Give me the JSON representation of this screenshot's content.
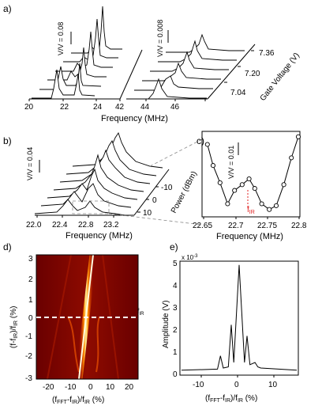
{
  "panels": {
    "a": {
      "label": "a)",
      "scale_left": "V/V = 0.08",
      "scale_right": "V/V = 0.008",
      "gate_axis_title": "Gate Voltage (V)",
      "gate_ticks": [
        "7.36",
        "7.20",
        "7.04"
      ],
      "x_ticks_left": [
        "20",
        "22",
        "24",
        "42"
      ],
      "x_ticks_right": [
        "44",
        "46"
      ],
      "x_title": "Frequency (MHz)"
    },
    "b": {
      "label": "b)",
      "scale": "V/V = 0.04",
      "power_axis_title": "Power (dBm)",
      "power_ticks": [
        "-10",
        "0",
        "10"
      ],
      "x_ticks": [
        "22.0",
        "22.4",
        "22.8",
        "23.2"
      ],
      "x_title": "Frequency (MHz)"
    },
    "c": {
      "label": "c)",
      "scale": "V/V = 0.01",
      "annotation": "f",
      "annotation_sub": "IR",
      "x_ticks": [
        "22.65",
        "22.7",
        "22.75",
        "22.8"
      ],
      "x_title": "Frequency (MHz)"
    },
    "d": {
      "label": "d)",
      "y_title": "(f-f",
      "y_title_sub": "IR",
      "y_title_rest": ")/f",
      "y_title_sub2": "IR",
      "y_title_unit": " (%)",
      "y_ticks": [
        "3",
        "2",
        "1",
        "0",
        "-1",
        "-2",
        "-3"
      ],
      "x_ticks": [
        "-20",
        "-10",
        "0",
        "10",
        "20"
      ],
      "x_title": "(f",
      "x_title_sub": "FFT",
      "x_title_mid": "-f",
      "x_title_sub2": "IR",
      "x_title_rest": ")/f",
      "x_title_sub3": "IR",
      "x_title_unit": " (%)",
      "marker": "f",
      "marker_sub": "IR"
    },
    "e": {
      "label": "e)",
      "exponent": "x 10",
      "exponent_power": "-3",
      "y_title": "Amplitude (V)",
      "y_ticks": [
        "5",
        "4",
        "3",
        "2",
        "1",
        "0"
      ],
      "x_ticks": [
        "-10",
        "0",
        "10"
      ],
      "x_title": "(f",
      "x_title_sub": "FFT",
      "x_title_mid": "-f",
      "x_title_sub2": "IR",
      "x_title_rest": ")/f",
      "x_title_sub3": "IR",
      "x_title_unit": " (%)"
    }
  },
  "chart_data": [
    {
      "panel": "c",
      "type": "scatter",
      "x": [
        22.656,
        22.665,
        22.676,
        22.688,
        22.699,
        22.711,
        22.722,
        22.731,
        22.742,
        22.754,
        22.765,
        22.777,
        22.789,
        22.8
      ],
      "y": [
        0.037,
        0.026,
        0.017,
        0.006,
        0.013,
        0.016,
        0.019,
        0.014,
        0.006,
        0.003,
        0.005,
        0.016,
        0.03,
        0.041
      ],
      "xlim": [
        22.65,
        22.8
      ],
      "ylim": [
        0,
        0.043
      ]
    },
    {
      "panel": "e",
      "type": "line",
      "x": [
        -16,
        -6,
        -5.2,
        -4.4,
        -3,
        -2.2,
        -1.5,
        0,
        1.5,
        2.2,
        3,
        4.4,
        5.2,
        6,
        16
      ],
      "y": [
        0.15,
        0.2,
        0.8,
        0.25,
        0.3,
        2.2,
        0.5,
        4.9,
        0.5,
        1.7,
        0.4,
        0.5,
        0.3,
        0.25,
        0.15
      ],
      "xlim": [
        -16,
        16
      ],
      "ylim": [
        0,
        5
      ]
    }
  ]
}
